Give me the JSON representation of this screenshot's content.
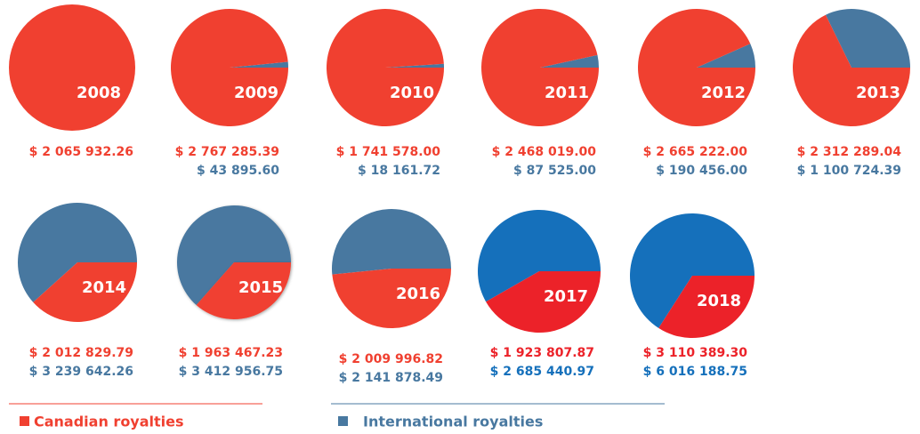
{
  "chart_data": [
    {
      "type": "pie",
      "title": "2008",
      "values": [
        2065932.26
      ],
      "value_labels": [
        "$ 2 065 932.26"
      ],
      "colors": [
        "#f04030"
      ]
    },
    {
      "type": "pie",
      "title": "2009",
      "values": [
        2767285.39,
        43895.6
      ],
      "value_labels": [
        "$ 2 767 285.39",
        "$ 43 895.60"
      ],
      "colors": [
        "#f04030",
        "#4878a0"
      ]
    },
    {
      "type": "pie",
      "title": "2010",
      "values": [
        1741578.0,
        18161.72
      ],
      "value_labels": [
        "$ 1 741 578.00",
        "$ 18 161.72"
      ],
      "colors": [
        "#f04030",
        "#4878a0"
      ]
    },
    {
      "type": "pie",
      "title": "2011",
      "values": [
        2468019.0,
        87525.0
      ],
      "value_labels": [
        "$ 2 468 019.00",
        "$ 87 525.00"
      ],
      "colors": [
        "#f04030",
        "#4878a0"
      ]
    },
    {
      "type": "pie",
      "title": "2012",
      "values": [
        2665222.0,
        190456.0
      ],
      "value_labels": [
        "$ 2 665 222.00",
        "$ 190 456.00"
      ],
      "colors": [
        "#f04030",
        "#4878a0"
      ]
    },
    {
      "type": "pie",
      "title": "2013",
      "values": [
        2312289.04,
        1100724.39
      ],
      "value_labels": [
        "$ 2 312 289.04",
        "$ 1 100 724.39"
      ],
      "colors": [
        "#f04030",
        "#4878a0"
      ]
    },
    {
      "type": "pie",
      "title": "2014",
      "values": [
        2012829.79,
        3239642.26
      ],
      "value_labels": [
        "$ 2 012 829.79",
        "$ 3 239 642.26"
      ],
      "colors": [
        "#f04030",
        "#4878a0"
      ]
    },
    {
      "type": "pie",
      "title": "2015",
      "values": [
        1963467.23,
        3412956.75
      ],
      "value_labels": [
        "$ 1 963 467.23",
        "$ 3 412 956.75"
      ],
      "colors": [
        "#f04030",
        "#4878a0"
      ]
    },
    {
      "type": "pie",
      "title": "2016",
      "values": [
        2009996.82,
        2141878.49
      ],
      "value_labels": [
        "$ 2 009 996.82",
        "$ 2 141 878.49"
      ],
      "colors": [
        "#f04030",
        "#4878a0"
      ]
    },
    {
      "type": "pie",
      "title": "2017",
      "values": [
        1923807.87,
        2685440.97
      ],
      "value_labels": [
        "$ 1 923 807.87",
        "$ 2 685 440.97"
      ],
      "colors": [
        "#ec2229",
        "#1570bb"
      ]
    },
    {
      "type": "pie",
      "title": "2018",
      "values": [
        3110389.3,
        6016188.75
      ],
      "value_labels": [
        "$ 3 110 389.30",
        "$ 6 016 188.75"
      ],
      "colors": [
        "#ec2229",
        "#1570bb"
      ]
    }
  ],
  "legend": [
    {
      "name": "Canadian royalties",
      "color": "#f04030"
    },
    {
      "name": "International royalties",
      "color": "#4878a0"
    }
  ]
}
